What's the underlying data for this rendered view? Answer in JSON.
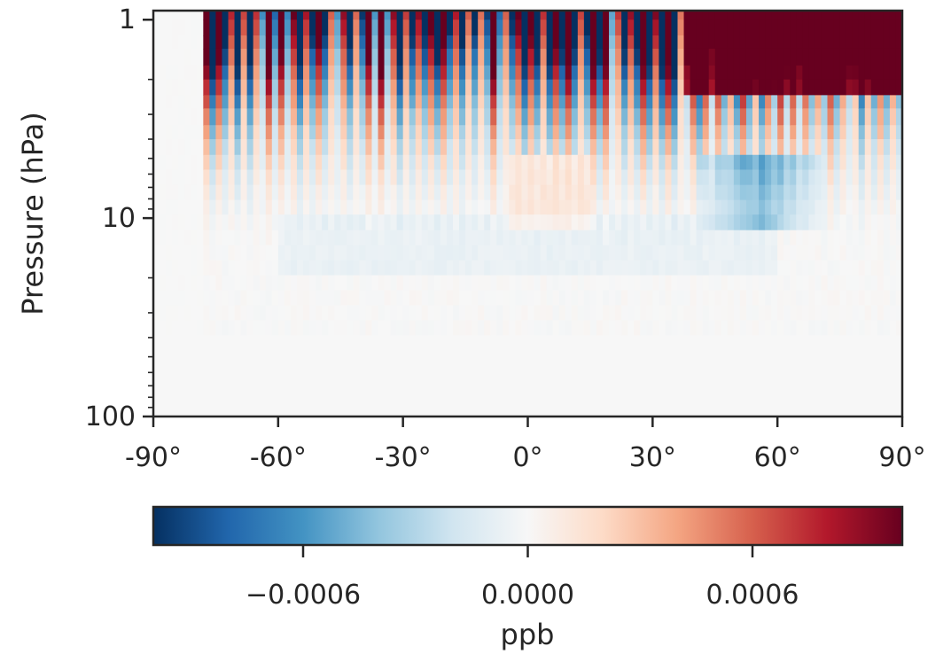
{
  "chart_data": {
    "type": "heatmap",
    "title": "",
    "xlabel": "",
    "ylabel": "Pressure (hPa)",
    "x_axis": {
      "range": [
        -90,
        90
      ],
      "ticks": [
        -90,
        -60,
        -30,
        0,
        30,
        60,
        90
      ],
      "tick_labels": [
        "-90°",
        "-60°",
        "-30°",
        "0°",
        "30°",
        "60°",
        "90°"
      ]
    },
    "y_axis": {
      "scale": "log",
      "inverted": true,
      "range": [
        100,
        0.9
      ],
      "ticks": [
        1,
        10,
        100
      ],
      "tick_labels": [
        "1",
        "10",
        "100"
      ]
    },
    "colorbar": {
      "label": "ppb",
      "colormap": "RdBu_r",
      "range": [
        -0.001,
        0.001
      ],
      "ticks": [
        -0.0006,
        0.0,
        0.0006
      ],
      "tick_labels": [
        "−0.0006",
        "0.0000",
        "0.0006"
      ],
      "colors": [
        "#053061",
        "#2166ac",
        "#4393c3",
        "#92c5de",
        "#d1e5f0",
        "#f7f7f7",
        "#fddbc7",
        "#f4a582",
        "#d6604d",
        "#b2182b",
        "#67001f"
      ]
    },
    "grid": false,
    "field_description": {
      "latitude_start": -90,
      "latitude_end": 90,
      "pressure_levels_hPa": [
        0.9,
        1.0,
        1.2,
        1.4,
        1.7,
        2.0,
        2.4,
        2.8,
        3.4,
        4.0,
        4.8,
        5.7,
        6.8,
        8.1,
        9.6,
        11.5,
        13.7,
        16.3,
        19.4,
        23.1,
        27.5,
        32.7,
        39.0,
        46.4,
        55.2,
        65.8,
        78.3,
        93.2,
        100.0
      ],
      "region_min_value_abs": 0,
      "polar_quiet_below_lat": -78
    }
  }
}
